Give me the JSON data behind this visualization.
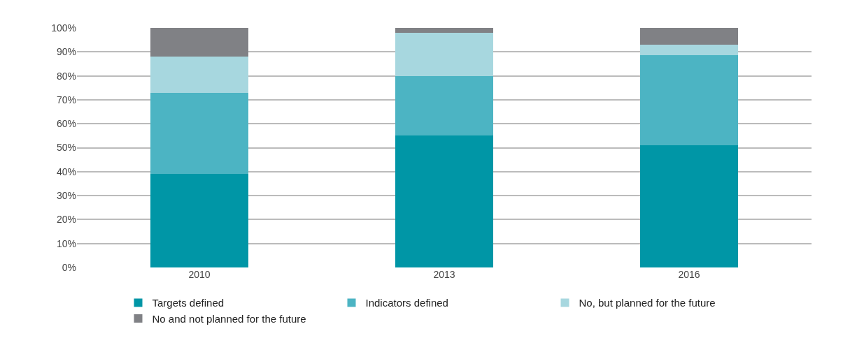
{
  "chart_data": {
    "type": "bar",
    "stacked": true,
    "categories": [
      "2010",
      "2013",
      "2016"
    ],
    "series": [
      {
        "name": "Targets defined",
        "color": "#0096a6",
        "values": [
          39,
          55,
          51
        ]
      },
      {
        "name": "Indicators defined",
        "color": "#4cb4c3",
        "values": [
          34,
          25,
          37.5
        ]
      },
      {
        "name": "No, but planned for the future",
        "color": "#a7d7df",
        "values": [
          15,
          18,
          4.5
        ]
      },
      {
        "name": "No and not planned for the future",
        "color": "#808185",
        "values": [
          12,
          2,
          7
        ]
      }
    ],
    "ylim": [
      0,
      100
    ],
    "yticks": [
      {
        "value": 0,
        "label": "0%"
      },
      {
        "value": 10,
        "label": "10%"
      },
      {
        "value": 20,
        "label": "20%"
      },
      {
        "value": 30,
        "label": "30%"
      },
      {
        "value": 40,
        "label": "40%"
      },
      {
        "value": 50,
        "label": "50%"
      },
      {
        "value": 60,
        "label": "60%"
      },
      {
        "value": 70,
        "label": "70%"
      },
      {
        "value": 80,
        "label": "80%"
      },
      {
        "value": 90,
        "label": "90%"
      },
      {
        "value": 100,
        "label": "100%"
      }
    ],
    "grid": "y",
    "legend": "bottom"
  }
}
